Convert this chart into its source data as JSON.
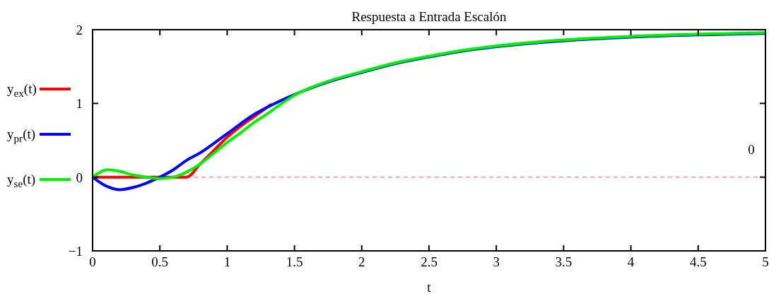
{
  "chart_data": {
    "type": "line",
    "title": "Respuesta a Entrada Escalón",
    "xlabel": "t",
    "xlim": [
      0,
      5
    ],
    "xticks": [
      0,
      0.5,
      1,
      1.5,
      2,
      2.5,
      3,
      3.5,
      4,
      4.5,
      5
    ],
    "ylim": [
      -1,
      2
    ],
    "yticks": [
      {
        "value": -1,
        "label": "−1"
      },
      0,
      1,
      2
    ],
    "grid": false,
    "legend": "left",
    "line_style": "solid",
    "marker": "none",
    "ref_lines": [
      {
        "axis": "y",
        "value": 0,
        "label": "0",
        "color": "#ff8080",
        "line_style": "dashed"
      }
    ],
    "series": [
      {
        "name": "y$_{ex}$(t)",
        "color": "#ff0000",
        "x": [
          0,
          0.7,
          0.8,
          0.9,
          1,
          1.1,
          1.2,
          1.33
        ],
        "values": [
          0,
          0,
          0.18,
          0.36,
          0.54,
          0.69,
          0.82,
          0.99
        ]
      },
      {
        "name": "y$_{pr}$(t)",
        "color": "#0000ff",
        "x": [
          0,
          0.1,
          0.2,
          0.3,
          0.4,
          0.5,
          0.6,
          0.7,
          0.8,
          1,
          1.2,
          1.3,
          1.5,
          1.75,
          2,
          2.25,
          2.5,
          2.75,
          3,
          3.5,
          4,
          4.5,
          5
        ],
        "values": [
          0,
          -0.12,
          -0.17,
          -0.14,
          -0.08,
          0,
          0.1,
          0.23,
          0.33,
          0.59,
          0.85,
          0.95,
          1.12,
          1.29,
          1.42,
          1.54,
          1.63,
          1.71,
          1.77,
          1.85,
          1.9,
          1.93,
          1.95
        ]
      },
      {
        "name": "y$_{se}$(t)",
        "color": "#00ee00",
        "x": [
          0,
          0.11,
          0.2,
          0.3,
          0.4,
          0.5,
          0.6,
          0.7,
          0.8,
          0.9,
          1,
          1.1,
          1.2,
          1.3,
          1.4,
          1.5,
          1.75,
          2,
          2.25,
          2.5,
          2.75,
          3,
          3.5,
          4,
          4.5,
          5
        ],
        "values": [
          0,
          0.1,
          0.08,
          0.03,
          0,
          -0.02,
          0,
          0.07,
          0.18,
          0.32,
          0.47,
          0.6,
          0.74,
          0.86,
          0.99,
          1.11,
          1.3,
          1.43,
          1.55,
          1.64,
          1.72,
          1.78,
          1.86,
          1.91,
          1.94,
          1.96
        ]
      }
    ]
  }
}
